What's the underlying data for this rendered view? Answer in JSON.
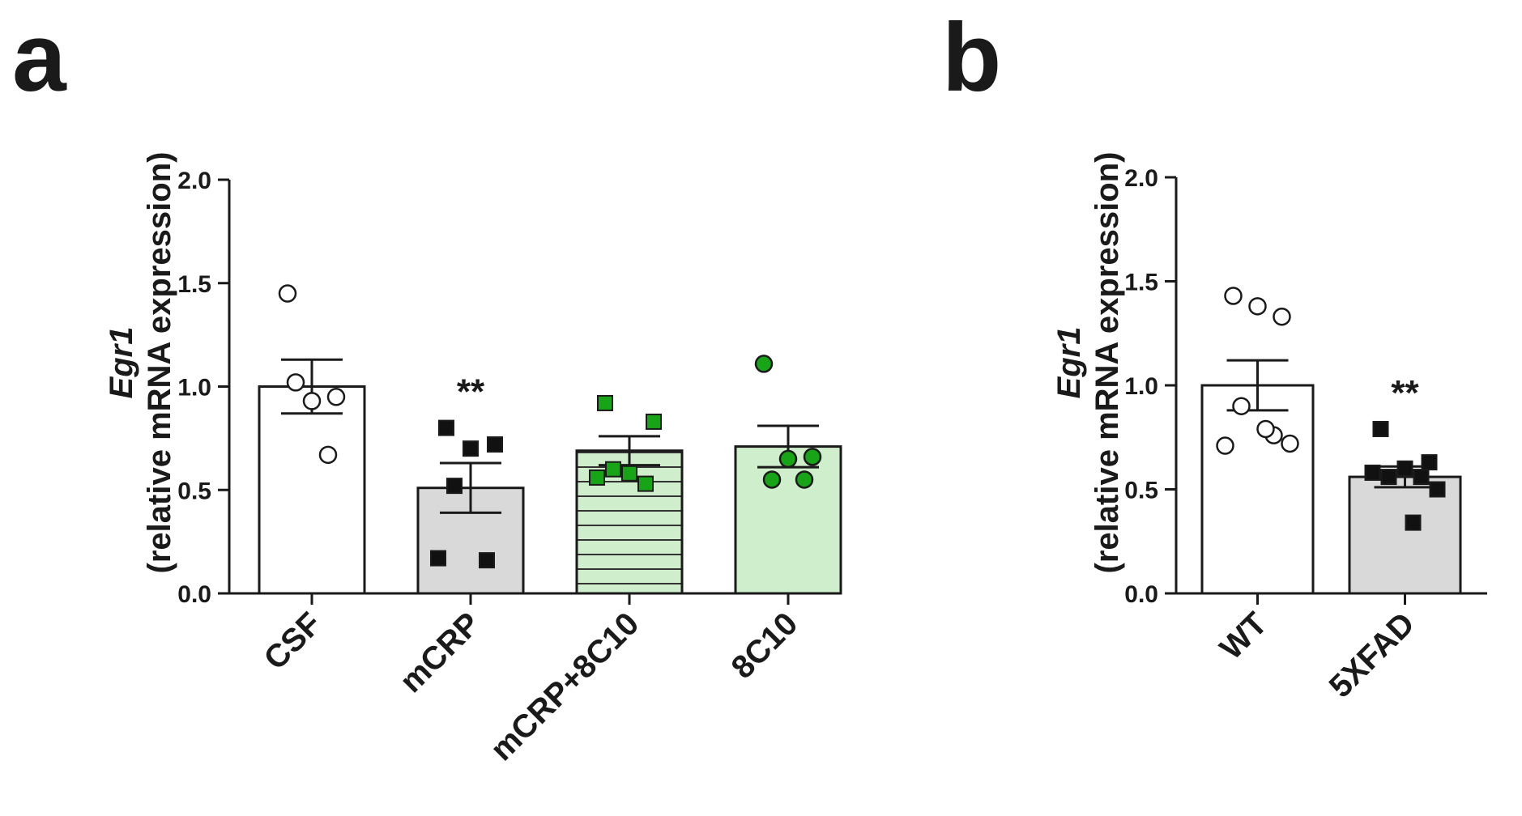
{
  "chart_data": [
    {
      "panel": "a",
      "type": "bar",
      "ylabel_gene": "Egr1",
      "ylabel_sub": "(relative mRNA expression)",
      "ylim": [
        0,
        2.0
      ],
      "yticks": [
        0.0,
        0.5,
        1.0,
        1.5,
        2.0
      ],
      "ytick_labels": [
        "0.0",
        "0.5",
        "1.0",
        "1.5",
        "2.0"
      ],
      "categories": [
        "CSF",
        "mCRP",
        "mCRP+8C10",
        "8C10"
      ],
      "bars": [
        {
          "label": "CSF",
          "mean": 1.0,
          "sem": 0.13,
          "fill": "#ffffff",
          "pattern": "none",
          "marker": "circle-open",
          "marker_color": "#ffffff",
          "significance": "",
          "points": [
            1.45,
            0.95,
            0.93,
            1.02,
            0.67
          ]
        },
        {
          "label": "mCRP",
          "mean": 0.51,
          "sem": 0.12,
          "fill": "#d9d9d9",
          "pattern": "none",
          "marker": "square",
          "marker_color": "#111111",
          "significance": "**",
          "points": [
            0.8,
            0.72,
            0.7,
            0.52,
            0.16,
            0.17
          ]
        },
        {
          "label": "mCRP+8C10",
          "mean": 0.69,
          "sem": 0.07,
          "fill": "#cfeecb",
          "pattern": "hlines",
          "marker": "square",
          "marker_color": "#17a517",
          "significance": "",
          "points": [
            0.92,
            0.83,
            0.58,
            0.6,
            0.53,
            0.56
          ]
        },
        {
          "label": "8C10",
          "mean": 0.71,
          "sem": 0.1,
          "fill": "#cfeecb",
          "pattern": "none",
          "marker": "circle",
          "marker_color": "#17a517",
          "significance": "",
          "points": [
            1.11,
            0.66,
            0.65,
            0.55,
            0.55
          ]
        }
      ]
    },
    {
      "panel": "b",
      "type": "bar",
      "ylabel_gene": "Egr1",
      "ylabel_sub": "(relative mRNA expression)",
      "ylim": [
        0,
        2.0
      ],
      "yticks": [
        0.0,
        0.5,
        1.0,
        1.5,
        2.0
      ],
      "ytick_labels": [
        "0.0",
        "0.5",
        "1.0",
        "1.5",
        "2.0"
      ],
      "categories": [
        "WT",
        "5XFAD"
      ],
      "bars": [
        {
          "label": "WT",
          "mean": 1.0,
          "sem": 0.12,
          "fill": "#ffffff",
          "pattern": "none",
          "marker": "circle-open",
          "marker_color": "#ffffff",
          "significance": "",
          "points": [
            1.43,
            1.33,
            1.38,
            0.9,
            0.76,
            0.71,
            0.72,
            0.79
          ]
        },
        {
          "label": "5XFAD",
          "mean": 0.56,
          "sem": 0.05,
          "fill": "#d9d9d9",
          "pattern": "none",
          "marker": "square",
          "marker_color": "#111111",
          "significance": "**",
          "points": [
            0.79,
            0.63,
            0.6,
            0.56,
            0.56,
            0.58,
            0.5,
            0.34
          ]
        }
      ]
    }
  ]
}
